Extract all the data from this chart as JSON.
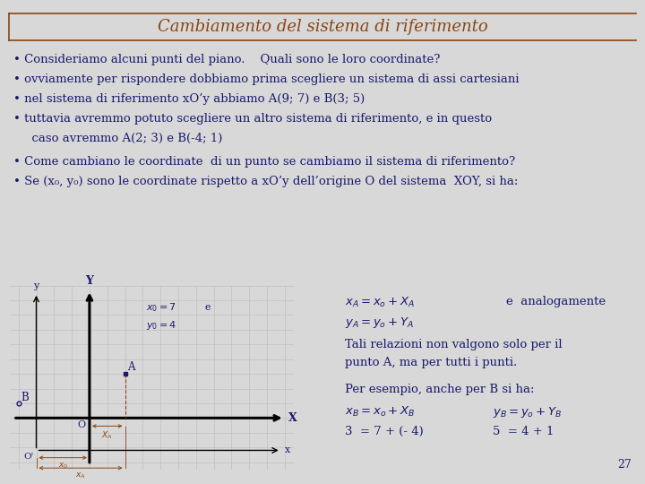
{
  "title": "Cambiamento del sistema di riferimento",
  "title_color": "#8B4513",
  "bg_color": "#d8d8d8",
  "text_color": "#1a1a6e",
  "brown_color": "#8B4513",
  "page_number": "27",
  "bullet1": "• Consideriamo alcuni punti del piano.    Quali sono le loro coordinate?",
  "bullet2": "• ovviamente per rispondere dobbiamo prima scegliere un sistema di assi cartesiani",
  "bullet3": "• nel sistema di riferimento xO’y abbiamo A(9; 7) e B(3; 5)",
  "bullet4": "• tuttavia avremmo potuto scegliere un altro sistema di riferimento, e in questo",
  "bullet4b": "  caso avremmo A(2; 3) e B(-4; 1)",
  "bullet5": "• Come cambiano le coordinate  di un punto se cambiamo il sistema di riferimento?",
  "bullet6": "• Se (x₀, y₀) sono le coordinate rispetto a xO’y dell’origine O del sistema  XOY, si ha:"
}
